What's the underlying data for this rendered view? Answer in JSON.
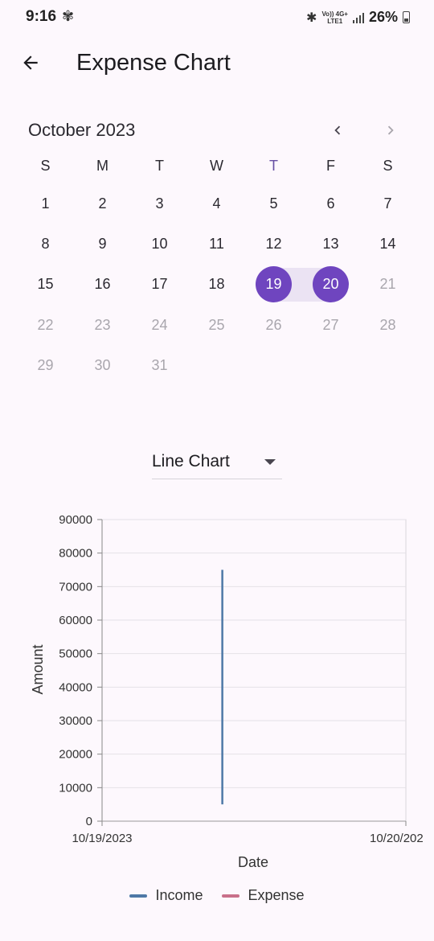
{
  "status": {
    "time": "9:16",
    "network_top": "Vo)) 4G+",
    "network_bottom": "LTE1",
    "battery": "26%"
  },
  "header": {
    "title": "Expense Chart"
  },
  "calendar": {
    "month": "October 2023",
    "weekdays": [
      "S",
      "M",
      "T",
      "W",
      "T",
      "F",
      "S"
    ],
    "today_weekday_index": 4,
    "weeks": [
      [
        {
          "d": "1"
        },
        {
          "d": "2"
        },
        {
          "d": "3"
        },
        {
          "d": "4"
        },
        {
          "d": "5"
        },
        {
          "d": "6"
        },
        {
          "d": "7"
        }
      ],
      [
        {
          "d": "8"
        },
        {
          "d": "9"
        },
        {
          "d": "10"
        },
        {
          "d": "11"
        },
        {
          "d": "12"
        },
        {
          "d": "13"
        },
        {
          "d": "14"
        }
      ],
      [
        {
          "d": "15"
        },
        {
          "d": "16"
        },
        {
          "d": "17"
        },
        {
          "d": "18"
        },
        {
          "d": "19",
          "s": "sel"
        },
        {
          "d": "20",
          "s": "sel"
        },
        {
          "d": "21",
          "s": "muted"
        }
      ],
      [
        {
          "d": "22",
          "s": "muted"
        },
        {
          "d": "23",
          "s": "muted"
        },
        {
          "d": "24",
          "s": "muted"
        },
        {
          "d": "25",
          "s": "muted"
        },
        {
          "d": "26",
          "s": "muted"
        },
        {
          "d": "27",
          "s": "muted"
        },
        {
          "d": "28",
          "s": "muted"
        }
      ],
      [
        {
          "d": "29",
          "s": "muted"
        },
        {
          "d": "30",
          "s": "muted"
        },
        {
          "d": "31",
          "s": "muted"
        }
      ]
    ],
    "selected_range": [
      "19",
      "20"
    ]
  },
  "chart_selector": {
    "value": "Line Chart"
  },
  "colors": {
    "accent": "#6f45bf",
    "range": "#ebe3f3",
    "income": "#4e79a7",
    "expense": "#c9708a"
  },
  "chart_data": {
    "type": "line",
    "xlabel": "Date",
    "ylabel": "Amount",
    "ylim": [
      0,
      90000
    ],
    "yticks": [
      "0",
      "10000",
      "20000",
      "30000",
      "40000",
      "50000",
      "60000",
      "70000",
      "80000",
      "90000"
    ],
    "x_tick_labels": [
      "10/19/2023",
      "10/20/202"
    ],
    "grid": true,
    "legend": "bottom",
    "series": [
      {
        "name": "Income",
        "color": "#4e79a7",
        "points": [
          {
            "x": "10/19/2023 09:30",
            "y": 5000
          },
          {
            "x": "10/19/2023 09:30",
            "y": 75000
          }
        ]
      },
      {
        "name": "Expense",
        "color": "#c9708a",
        "points": []
      }
    ]
  }
}
